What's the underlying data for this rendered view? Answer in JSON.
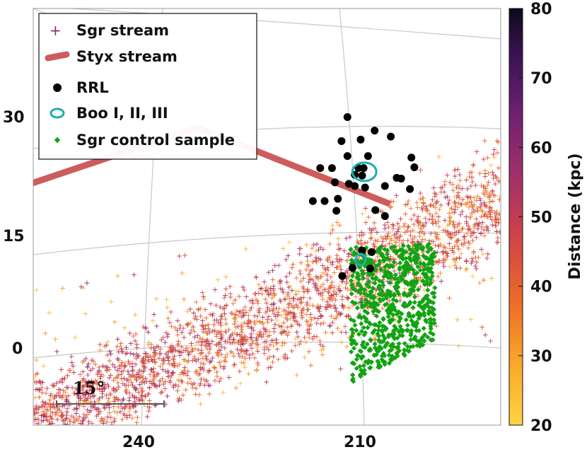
{
  "chart_data": {
    "type": "scatter",
    "title": "",
    "xlabel": "",
    "ylabel": "",
    "x_ticks": [
      "240",
      "210"
    ],
    "y_ticks": [
      "30",
      "15",
      "0"
    ],
    "xlim": [
      255,
      190
    ],
    "ylim": [
      -10,
      42
    ],
    "legend": {
      "placement": "top-left",
      "entries": [
        {
          "key": "sgr",
          "label": "Sgr stream",
          "marker": "plus",
          "color": "#8b2c6e"
        },
        {
          "key": "styx",
          "label": "Styx stream",
          "marker": "thick-line",
          "color": "#cd5c5c"
        },
        {
          "key": "rrl",
          "label": "RRL",
          "marker": "circle",
          "color": "#000000"
        },
        {
          "key": "boo",
          "label": "Boo I, II, III",
          "marker": "ellipse",
          "color": "#17b0b4"
        },
        {
          "key": "ctrl",
          "label": "Sgr control sample",
          "marker": "diamond",
          "color": "#12a312"
        }
      ]
    },
    "series": [
      {
        "name": "Styx stream",
        "type": "line",
        "points": [
          [
            255,
            21.9
          ],
          [
            232.3,
            29.4
          ],
          [
            206.1,
            19.2
          ]
        ]
      },
      {
        "name": "RRL",
        "type": "scatter",
        "points": [
          [
            211.9,
            30.8
          ],
          [
            208.2,
            29.0
          ],
          [
            212.7,
            27.6
          ],
          [
            206.0,
            28.2
          ],
          [
            210.1,
            27.8
          ],
          [
            211.9,
            25.6
          ],
          [
            209.1,
            25.6
          ],
          [
            203.2,
            25.4
          ],
          [
            215.6,
            24.0
          ],
          [
            214.0,
            24.0
          ],
          [
            210.4,
            24.0
          ],
          [
            209.7,
            24.0
          ],
          [
            202.8,
            24.1
          ],
          [
            210.9,
            23.1
          ],
          [
            209.9,
            23.0
          ],
          [
            205.2,
            22.7
          ],
          [
            204.6,
            22.6
          ],
          [
            213.6,
            22.1
          ],
          [
            211.7,
            21.9
          ],
          [
            210.9,
            21.6
          ],
          [
            209.5,
            21.4
          ],
          [
            206.8,
            21.6
          ],
          [
            203.4,
            21.2
          ],
          [
            213.2,
            19.9
          ],
          [
            216.6,
            19.6
          ],
          [
            215.0,
            19.6
          ],
          [
            208.1,
            18.4
          ],
          [
            213.4,
            18.3
          ],
          [
            206.8,
            17.6
          ],
          [
            209.9,
            13.0
          ],
          [
            208.6,
            12.8
          ],
          [
            211.2,
            10.7
          ],
          [
            208.8,
            10.6
          ],
          [
            212.6,
            9.6
          ]
        ]
      },
      {
        "name": "Boo I, II, III",
        "type": "ellipse",
        "points": [
          [
            209.6,
            23.5
          ],
          [
            210.1,
            11.8
          ]
        ]
      },
      {
        "name": "Sgr stream",
        "type": "scatter",
        "description": "~thousands of plus markers colored by distance; band from (255,-9) rising to (190,20)"
      },
      {
        "name": "Sgr control sample",
        "type": "scatter",
        "description": "green diamonds in region x 212 to 200, y -5 to 12"
      }
    ],
    "colorbar": {
      "label": "Distance (kpc)",
      "ticks": [
        "20",
        "30",
        "40",
        "50",
        "60",
        "70",
        "80"
      ],
      "range": [
        20,
        80
      ],
      "colormap": "inferno_r"
    },
    "scale_bar": {
      "label": "15°",
      "length_deg": 15
    }
  }
}
